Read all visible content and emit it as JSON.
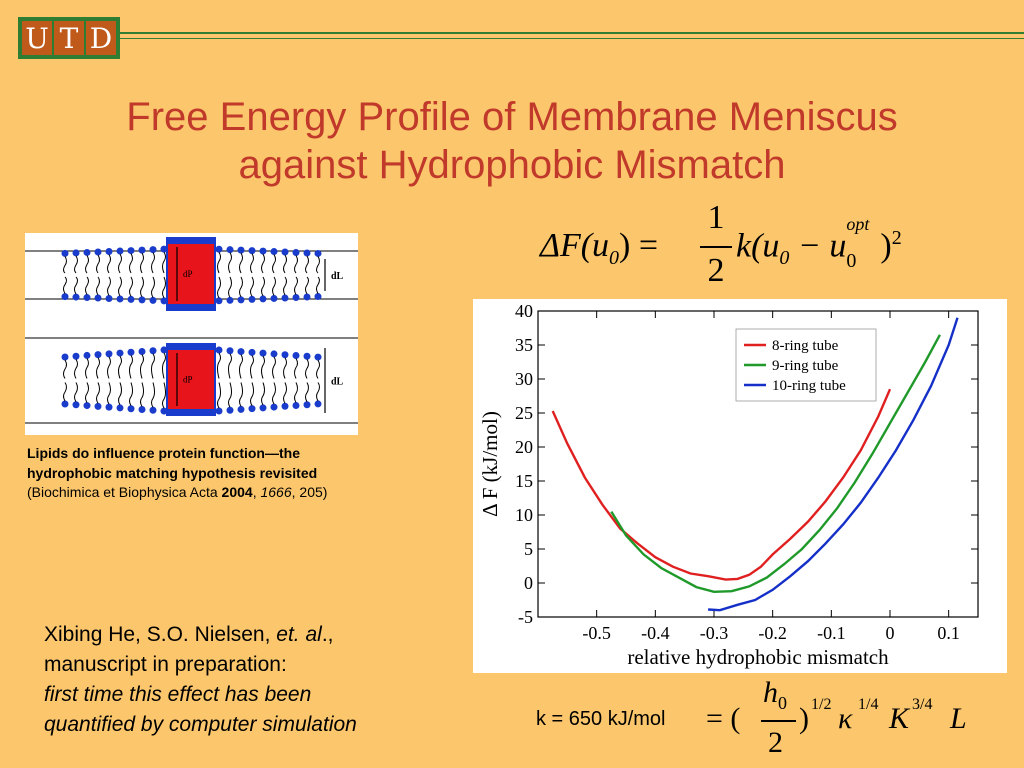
{
  "logo": {
    "letters": [
      "U",
      "T",
      "D"
    ]
  },
  "title": {
    "line1": "Free Energy Profile of Membrane Meniscus",
    "line2": "against Hydrophobic Mismatch"
  },
  "formula_main": {
    "lhs": "ΔF(u",
    "sub0": "0",
    "close": ") =",
    "frac_num": "1",
    "frac_den": "2",
    "rhs": "k(u",
    "rhs_sub": "0",
    "minus": " − u",
    "opt_sup": "opt",
    "opt_sub": "0",
    "rparen": ")",
    "exp": "2"
  },
  "membrane_labels": {
    "dp": "dP",
    "dl": "dL"
  },
  "caption": {
    "bold": "Lipids do influence protein function—the hydrophobic matching hypothesis revisited",
    "journal": " (Biochimica et Biophysica Acta ",
    "year": "2004",
    "sep": ", ",
    "volume": "1666",
    "pages": ", 205)"
  },
  "author": {
    "names": "Xibing He, S.O. Nielsen, ",
    "etal": "et. al",
    "tail": ".,",
    "line2": "manuscript in preparation:",
    "note": "first time this effect has been quantified by computer simulation"
  },
  "k_line": {
    "label": "k = 650 kJ/mol",
    "eq": "= (",
    "h": "h",
    "h_sub": "0",
    "den": "2",
    "exp1": "1/2",
    "kappa": "κ",
    "exp2": "1/4",
    "K": "K",
    "exp3": "3/4",
    "L": "L",
    "close": ")"
  },
  "chart_data": {
    "type": "line",
    "xlabel": "relative hydrophobic mismatch",
    "ylabel": "Δ F (kJ/mol)",
    "xlim": [
      -0.6,
      0.15
    ],
    "ylim": [
      -5,
      40
    ],
    "xticks": [
      "-0.5",
      "-0.4",
      "-0.3",
      "-0.2",
      "-0.1",
      "0",
      "0.1"
    ],
    "yticks": [
      "-5",
      "0",
      "5",
      "10",
      "15",
      "20",
      "25",
      "30",
      "35",
      "40"
    ],
    "legend_position": "top-right",
    "series": [
      {
        "name": "8-ring tube",
        "color": "#e02020",
        "x": [
          -0.575,
          -0.55,
          -0.52,
          -0.49,
          -0.46,
          -0.43,
          -0.4,
          -0.37,
          -0.34,
          -0.31,
          -0.28,
          -0.26,
          -0.24,
          -0.22,
          -0.2,
          -0.17,
          -0.14,
          -0.11,
          -0.08,
          -0.05,
          -0.02,
          0.0
        ],
        "y": [
          25.3,
          20.5,
          15.5,
          11.5,
          8.0,
          5.8,
          3.8,
          2.4,
          1.4,
          1.0,
          0.5,
          0.6,
          1.2,
          2.4,
          4.2,
          6.5,
          9.0,
          12.0,
          15.5,
          19.5,
          24.5,
          28.5
        ]
      },
      {
        "name": "9-ring tube",
        "color": "#1f9a2a",
        "x": [
          -0.475,
          -0.45,
          -0.42,
          -0.39,
          -0.36,
          -0.33,
          -0.3,
          -0.27,
          -0.24,
          -0.21,
          -0.18,
          -0.15,
          -0.12,
          -0.09,
          -0.06,
          -0.03,
          0.0,
          0.03,
          0.06,
          0.085
        ],
        "y": [
          10.5,
          7.0,
          4.2,
          2.2,
          0.8,
          -0.6,
          -1.3,
          -1.2,
          -0.5,
          0.8,
          2.8,
          5.0,
          7.8,
          11.0,
          14.8,
          19.0,
          23.5,
          28.0,
          32.5,
          36.5
        ]
      },
      {
        "name": "10-ring tube",
        "color": "#1530c8",
        "x": [
          -0.31,
          -0.29,
          -0.26,
          -0.23,
          -0.2,
          -0.17,
          -0.14,
          -0.11,
          -0.08,
          -0.05,
          -0.02,
          0.01,
          0.04,
          0.07,
          0.1,
          0.115
        ],
        "y": [
          -3.9,
          -4.0,
          -3.2,
          -2.5,
          -1.0,
          1.0,
          3.2,
          5.8,
          8.6,
          11.8,
          15.5,
          19.5,
          24.0,
          29.0,
          35.0,
          39.0
        ]
      }
    ]
  }
}
